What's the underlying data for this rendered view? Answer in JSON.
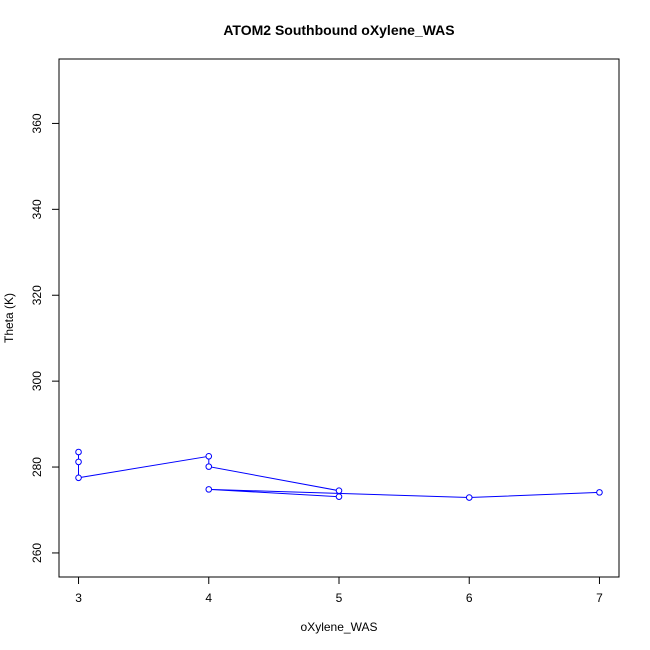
{
  "chart_data": {
    "type": "line",
    "title": "ATOM2 Southbound oXylene_WAS",
    "xlabel": "oXylene_WAS",
    "ylabel": "Theta (K)",
    "xlim": [
      2.85,
      7.15
    ],
    "ylim": [
      254.4,
      375.0
    ],
    "x_ticks": [
      3,
      4,
      5,
      6,
      7
    ],
    "y_ticks": [
      260,
      280,
      300,
      320,
      340,
      360
    ],
    "grid": false,
    "series": [
      {
        "color": "#0000ff",
        "x": [
          3,
          3,
          3,
          4,
          4,
          5,
          5,
          4,
          6,
          7
        ],
        "y": [
          283.5,
          281.2,
          277.5,
          282.5,
          280.1,
          274.5,
          273.1,
          274.8,
          272.9,
          274.1
        ]
      }
    ]
  }
}
